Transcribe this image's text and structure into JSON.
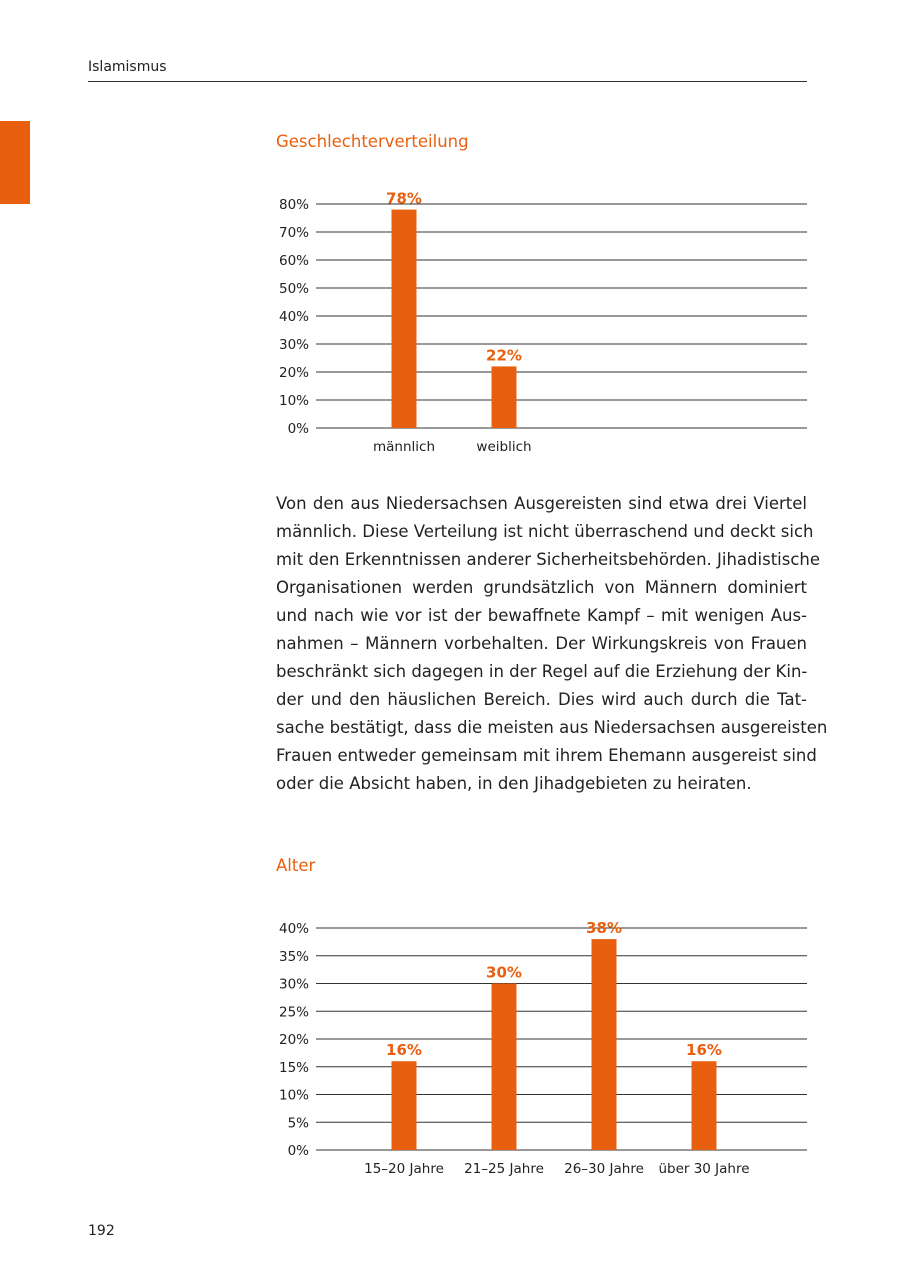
{
  "header": {
    "running_title": "Islamismus"
  },
  "colors": {
    "accent": "#E8600F",
    "grid": "#333333"
  },
  "page_number": "192",
  "paragraph_lines": [
    "Von den aus Niedersachsen Ausgereisten sind etwa drei Viertel",
    "männlich. Diese Verteilung ist nicht überraschend und deckt sich",
    "mit den Erkenntnissen anderer Sicherheitsbehörden. Jihadistische",
    "Organisationen werden grundsätzlich von Männern dominiert",
    "und nach wie vor ist der bewaffnete Kampf – mit wenigen Aus-",
    "nahmen – Männern vorbehalten. Der Wirkungskreis von Frauen",
    "beschränkt sich dagegen in der Regel auf die Erziehung der Kin-",
    "der und den häuslichen Bereich. Dies wird auch durch die Tat-",
    "sache bestätigt, dass die meisten aus Niedersachsen ausgereisten",
    "Frauen entweder gemeinsam mit ihrem Ehemann ausgereist sind",
    "oder die Absicht haben, in den Jihadgebieten zu heiraten."
  ],
  "chart_data": [
    {
      "type": "bar",
      "title": "Geschlechterverteilung",
      "categories": [
        "männlich",
        "weiblich"
      ],
      "values": [
        78,
        22
      ],
      "data_labels": [
        "78%",
        "22%"
      ],
      "ylim": [
        0,
        80
      ],
      "yticks": [
        "0%",
        "10%",
        "20%",
        "30%",
        "40%",
        "50%",
        "60%",
        "70%",
        "80%"
      ],
      "grid": true
    },
    {
      "type": "bar",
      "title": "Alter",
      "categories": [
        "15–20 Jahre",
        "21–25 Jahre",
        "26–30 Jahre",
        "über 30 Jahre"
      ],
      "values": [
        16,
        30,
        38,
        16
      ],
      "data_labels": [
        "16%",
        "30%",
        "38%",
        "16%"
      ],
      "ylim": [
        0,
        40
      ],
      "yticks": [
        "0%",
        "5%",
        "10%",
        "15%",
        "20%",
        "25%",
        "30%",
        "35%",
        "40%"
      ],
      "grid": true
    }
  ]
}
